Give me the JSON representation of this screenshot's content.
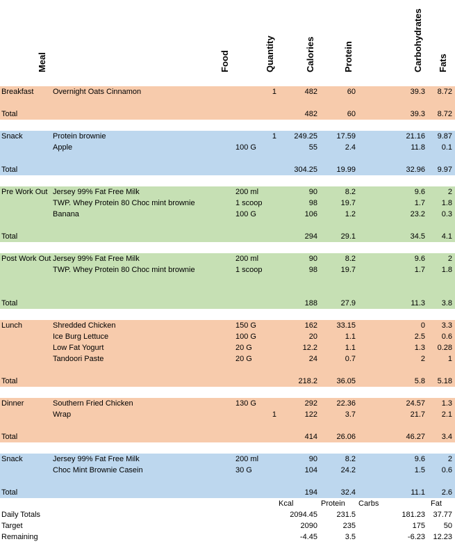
{
  "headers": {
    "meal": "Meal",
    "food": "Food",
    "quantity": "Quantity",
    "calories": "Calories",
    "protein": "Protein",
    "carbohydrates": "Carbohydrates",
    "fats": "Fats"
  },
  "colors": {
    "orange": "#f7cbac",
    "blue": "#bdd7ee",
    "green": "#c6e0b4"
  },
  "rows": [
    {
      "color": "orange",
      "meal": "Breakfast",
      "food": "Overnight Oats Cinnamon",
      "unit": "",
      "qty": "1",
      "cal": "482",
      "pro": "60",
      "carb": "39.3",
      "fat": "8.72"
    },
    {
      "color": "orange",
      "meal": "",
      "food": "",
      "unit": "",
      "qty": "",
      "cal": "",
      "pro": "",
      "carb": "",
      "fat": ""
    },
    {
      "color": "orange",
      "meal": "Total",
      "food": "",
      "unit": "",
      "qty": "",
      "cal": "482",
      "pro": "60",
      "carb": "39.3",
      "fat": "8.72"
    },
    {
      "color": "white",
      "meal": "",
      "food": "",
      "unit": "",
      "qty": "",
      "cal": "",
      "pro": "",
      "carb": "",
      "fat": ""
    },
    {
      "color": "blue",
      "meal": "Snack",
      "food": "Protein brownie",
      "unit": "",
      "qty": "1",
      "cal": "249.25",
      "pro": "17.59",
      "carb": "21.16",
      "fat": "9.87"
    },
    {
      "color": "blue",
      "meal": "",
      "food": "Apple",
      "unit": "100 G",
      "qty": "",
      "cal": "55",
      "pro": "2.4",
      "carb": "11.8",
      "fat": "0.1"
    },
    {
      "color": "blue",
      "meal": "",
      "food": "",
      "unit": "",
      "qty": "",
      "cal": "",
      "pro": "",
      "carb": "",
      "fat": ""
    },
    {
      "color": "blue",
      "meal": "Total",
      "food": "",
      "unit": "",
      "qty": "",
      "cal": "304.25",
      "pro": "19.99",
      "carb": "32.96",
      "fat": "9.97"
    },
    {
      "color": "white",
      "meal": "",
      "food": "",
      "unit": "",
      "qty": "",
      "cal": "",
      "pro": "",
      "carb": "",
      "fat": ""
    },
    {
      "color": "green",
      "meal": "Pre Work Out",
      "food": "Jersey 99% Fat Free Milk",
      "unit": "200 ml",
      "qty": "",
      "cal": "90",
      "pro": "8.2",
      "carb": "9.6",
      "fat": "2"
    },
    {
      "color": "green",
      "meal": "",
      "food": "TWP. Whey Protein 80 Choc mint brownie",
      "unit": "1 scoop",
      "qty": "",
      "cal": "98",
      "pro": "19.7",
      "carb": "1.7",
      "fat": "1.8"
    },
    {
      "color": "green",
      "meal": "",
      "food": "Banana",
      "unit": "100 G",
      "qty": "",
      "cal": "106",
      "pro": "1.2",
      "carb": "23.2",
      "fat": "0.3"
    },
    {
      "color": "green",
      "meal": "",
      "food": "",
      "unit": "",
      "qty": "",
      "cal": "",
      "pro": "",
      "carb": "",
      "fat": ""
    },
    {
      "color": "green",
      "meal": "Total",
      "food": "",
      "unit": "",
      "qty": "",
      "cal": "294",
      "pro": "29.1",
      "carb": "34.5",
      "fat": "4.1"
    },
    {
      "color": "white",
      "meal": "",
      "food": "",
      "unit": "",
      "qty": "",
      "cal": "",
      "pro": "",
      "carb": "",
      "fat": ""
    },
    {
      "color": "green",
      "meal": "Post Work Out",
      "food": "Jersey 99% Fat Free Milk",
      "unit": "200 ml",
      "qty": "",
      "cal": "90",
      "pro": "8.2",
      "carb": "9.6",
      "fat": "2"
    },
    {
      "color": "green",
      "meal": "",
      "food": "TWP. Whey Protein 80 Choc mint brownie",
      "unit": "1 scoop",
      "qty": "",
      "cal": "98",
      "pro": "19.7",
      "carb": "1.7",
      "fat": "1.8"
    },
    {
      "color": "green",
      "meal": "",
      "food": "",
      "unit": "",
      "qty": "",
      "cal": "",
      "pro": "",
      "carb": "",
      "fat": ""
    },
    {
      "color": "green",
      "meal": "",
      "food": "",
      "unit": "",
      "qty": "",
      "cal": "",
      "pro": "",
      "carb": "",
      "fat": ""
    },
    {
      "color": "green",
      "meal": "Total",
      "food": "",
      "unit": "",
      "qty": "",
      "cal": "188",
      "pro": "27.9",
      "carb": "11.3",
      "fat": "3.8"
    },
    {
      "color": "white",
      "meal": "",
      "food": "",
      "unit": "",
      "qty": "",
      "cal": "",
      "pro": "",
      "carb": "",
      "fat": ""
    },
    {
      "color": "orange",
      "meal": "Lunch",
      "food": "Shredded Chicken",
      "unit": "150 G",
      "qty": "",
      "cal": "162",
      "pro": "33.15",
      "carb": "0",
      "fat": "3.3"
    },
    {
      "color": "orange",
      "meal": "",
      "food": "Ice Burg Lettuce",
      "unit": "100 G",
      "qty": "",
      "cal": "20",
      "pro": "1.1",
      "carb": "2.5",
      "fat": "0.6"
    },
    {
      "color": "orange",
      "meal": "",
      "food": "Low Fat Yogurt",
      "unit": "20 G",
      "qty": "",
      "cal": "12.2",
      "pro": "1.1",
      "carb": "1.3",
      "fat": "0.28"
    },
    {
      "color": "orange",
      "meal": "",
      "food": "Tandoori Paste",
      "unit": "20 G",
      "qty": "",
      "cal": "24",
      "pro": "0.7",
      "carb": "2",
      "fat": "1"
    },
    {
      "color": "orange",
      "meal": "",
      "food": "",
      "unit": "",
      "qty": "",
      "cal": "",
      "pro": "",
      "carb": "",
      "fat": ""
    },
    {
      "color": "orange",
      "meal": "Total",
      "food": "",
      "unit": "",
      "qty": "",
      "cal": "218.2",
      "pro": "36.05",
      "carb": "5.8",
      "fat": "5.18"
    },
    {
      "color": "white",
      "meal": "",
      "food": "",
      "unit": "",
      "qty": "",
      "cal": "",
      "pro": "",
      "carb": "",
      "fat": ""
    },
    {
      "color": "orange",
      "meal": "Dinner",
      "food": "Southern Fried Chicken",
      "unit": "130 G",
      "qty": "",
      "cal": "292",
      "pro": "22.36",
      "carb": "24.57",
      "fat": "1.3"
    },
    {
      "color": "orange",
      "meal": "",
      "food": "Wrap",
      "unit": "",
      "qty": "1",
      "cal": "122",
      "pro": "3.7",
      "carb": "21.7",
      "fat": "2.1"
    },
    {
      "color": "orange",
      "meal": "",
      "food": "",
      "unit": "",
      "qty": "",
      "cal": "",
      "pro": "",
      "carb": "",
      "fat": ""
    },
    {
      "color": "orange",
      "meal": "Total",
      "food": "",
      "unit": "",
      "qty": "",
      "cal": "414",
      "pro": "26.06",
      "carb": "46.27",
      "fat": "3.4"
    },
    {
      "color": "white",
      "meal": "",
      "food": "",
      "unit": "",
      "qty": "",
      "cal": "",
      "pro": "",
      "carb": "",
      "fat": ""
    },
    {
      "color": "blue",
      "meal": "Snack",
      "food": "Jersey 99% Fat Free Milk",
      "unit": "200 ml",
      "qty": "",
      "cal": "90",
      "pro": "8.2",
      "carb": "9.6",
      "fat": "2"
    },
    {
      "color": "blue",
      "meal": "",
      "food": "Choc Mint Brownie Casein",
      "unit": "30 G",
      "qty": "",
      "cal": "104",
      "pro": "24.2",
      "carb": "1.5",
      "fat": "0.6"
    },
    {
      "color": "blue",
      "meal": "",
      "food": "",
      "unit": "",
      "qty": "",
      "cal": "",
      "pro": "",
      "carb": "",
      "fat": ""
    },
    {
      "color": "blue",
      "meal": "Total",
      "food": "",
      "unit": "",
      "qty": "",
      "cal": "194",
      "pro": "32.4",
      "carb": "11.1",
      "fat": "2.6"
    }
  ],
  "summary_labels": {
    "kcal": "Kcal",
    "protein": "Protein",
    "carbs": "Carbs",
    "fat": "Fat"
  },
  "summary": [
    {
      "label": "Daily Totals",
      "cal": "2094.45",
      "pro": "231.5",
      "carb": "181.23",
      "fat": "37.77"
    },
    {
      "label": "Target",
      "cal": "2090",
      "pro": "235",
      "carb": "175",
      "fat": "50"
    },
    {
      "label": "Remaining",
      "cal": "-4.45",
      "pro": "3.5",
      "carb": "-6.23",
      "fat": "12.23"
    }
  ]
}
